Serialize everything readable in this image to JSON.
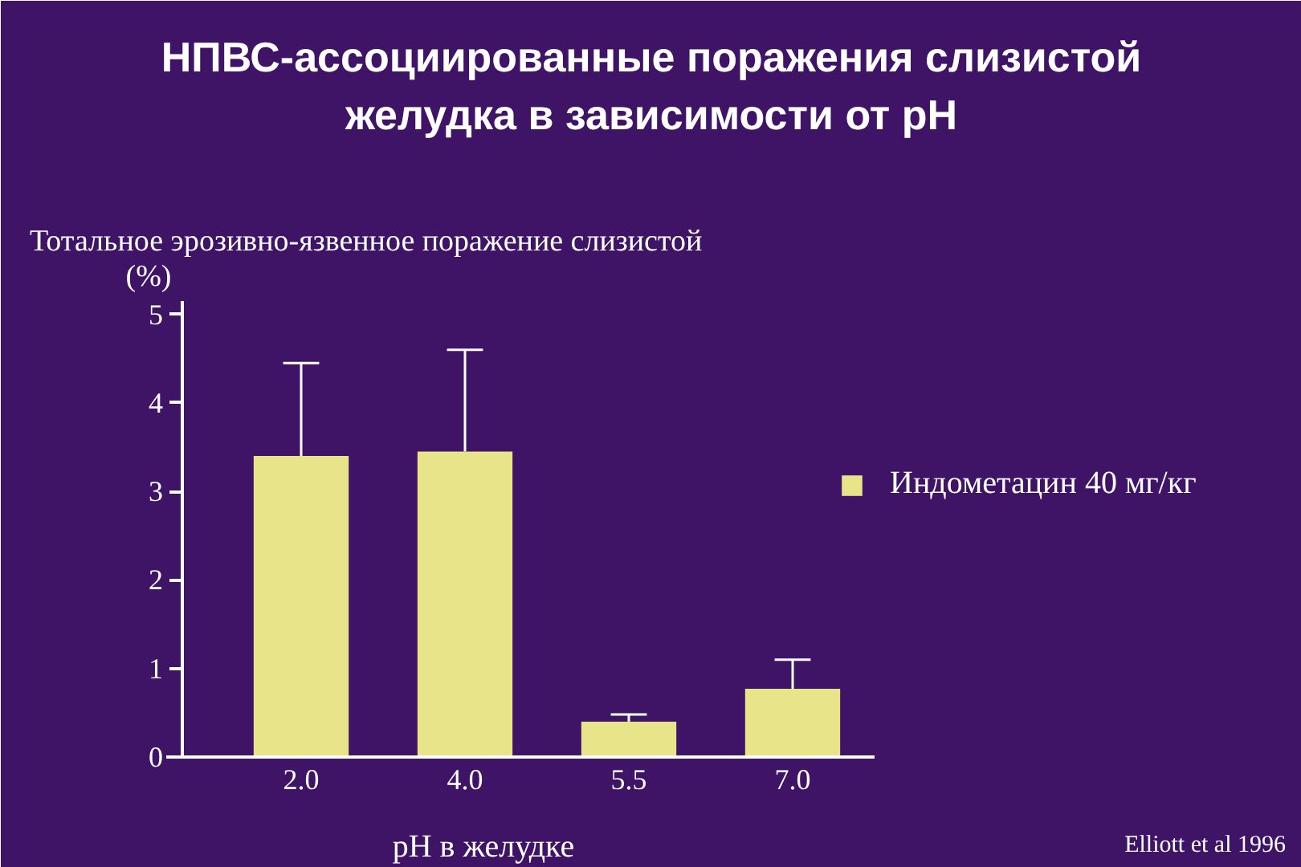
{
  "chart_data": {
    "type": "bar",
    "title": "НПВС-ассоциированные поражения слизистой желудка в зависимости от pH",
    "xlabel": "pH в желудке",
    "ylabel": "Тотальное эрозивно-язвенное поражение слизистой (%)",
    "categories": [
      "2.0",
      "4.0",
      "5.5",
      "7.0"
    ],
    "series": [
      {
        "name": "Индометацин 40 мг/кг",
        "color": "#e8e48a",
        "values": [
          3.4,
          3.45,
          0.4,
          0.77
        ],
        "errors": [
          [
            3.4,
            4.45
          ],
          [
            3.45,
            4.6
          ],
          [
            0.4,
            0.48
          ],
          [
            0.77,
            1.1
          ]
        ]
      }
    ],
    "ylim": [
      0,
      5.15
    ],
    "yticks": [
      0,
      1,
      2,
      3,
      4,
      5
    ],
    "grid": false,
    "legend": "right",
    "annotations": [
      "Elliott et al 1996"
    ]
  }
}
